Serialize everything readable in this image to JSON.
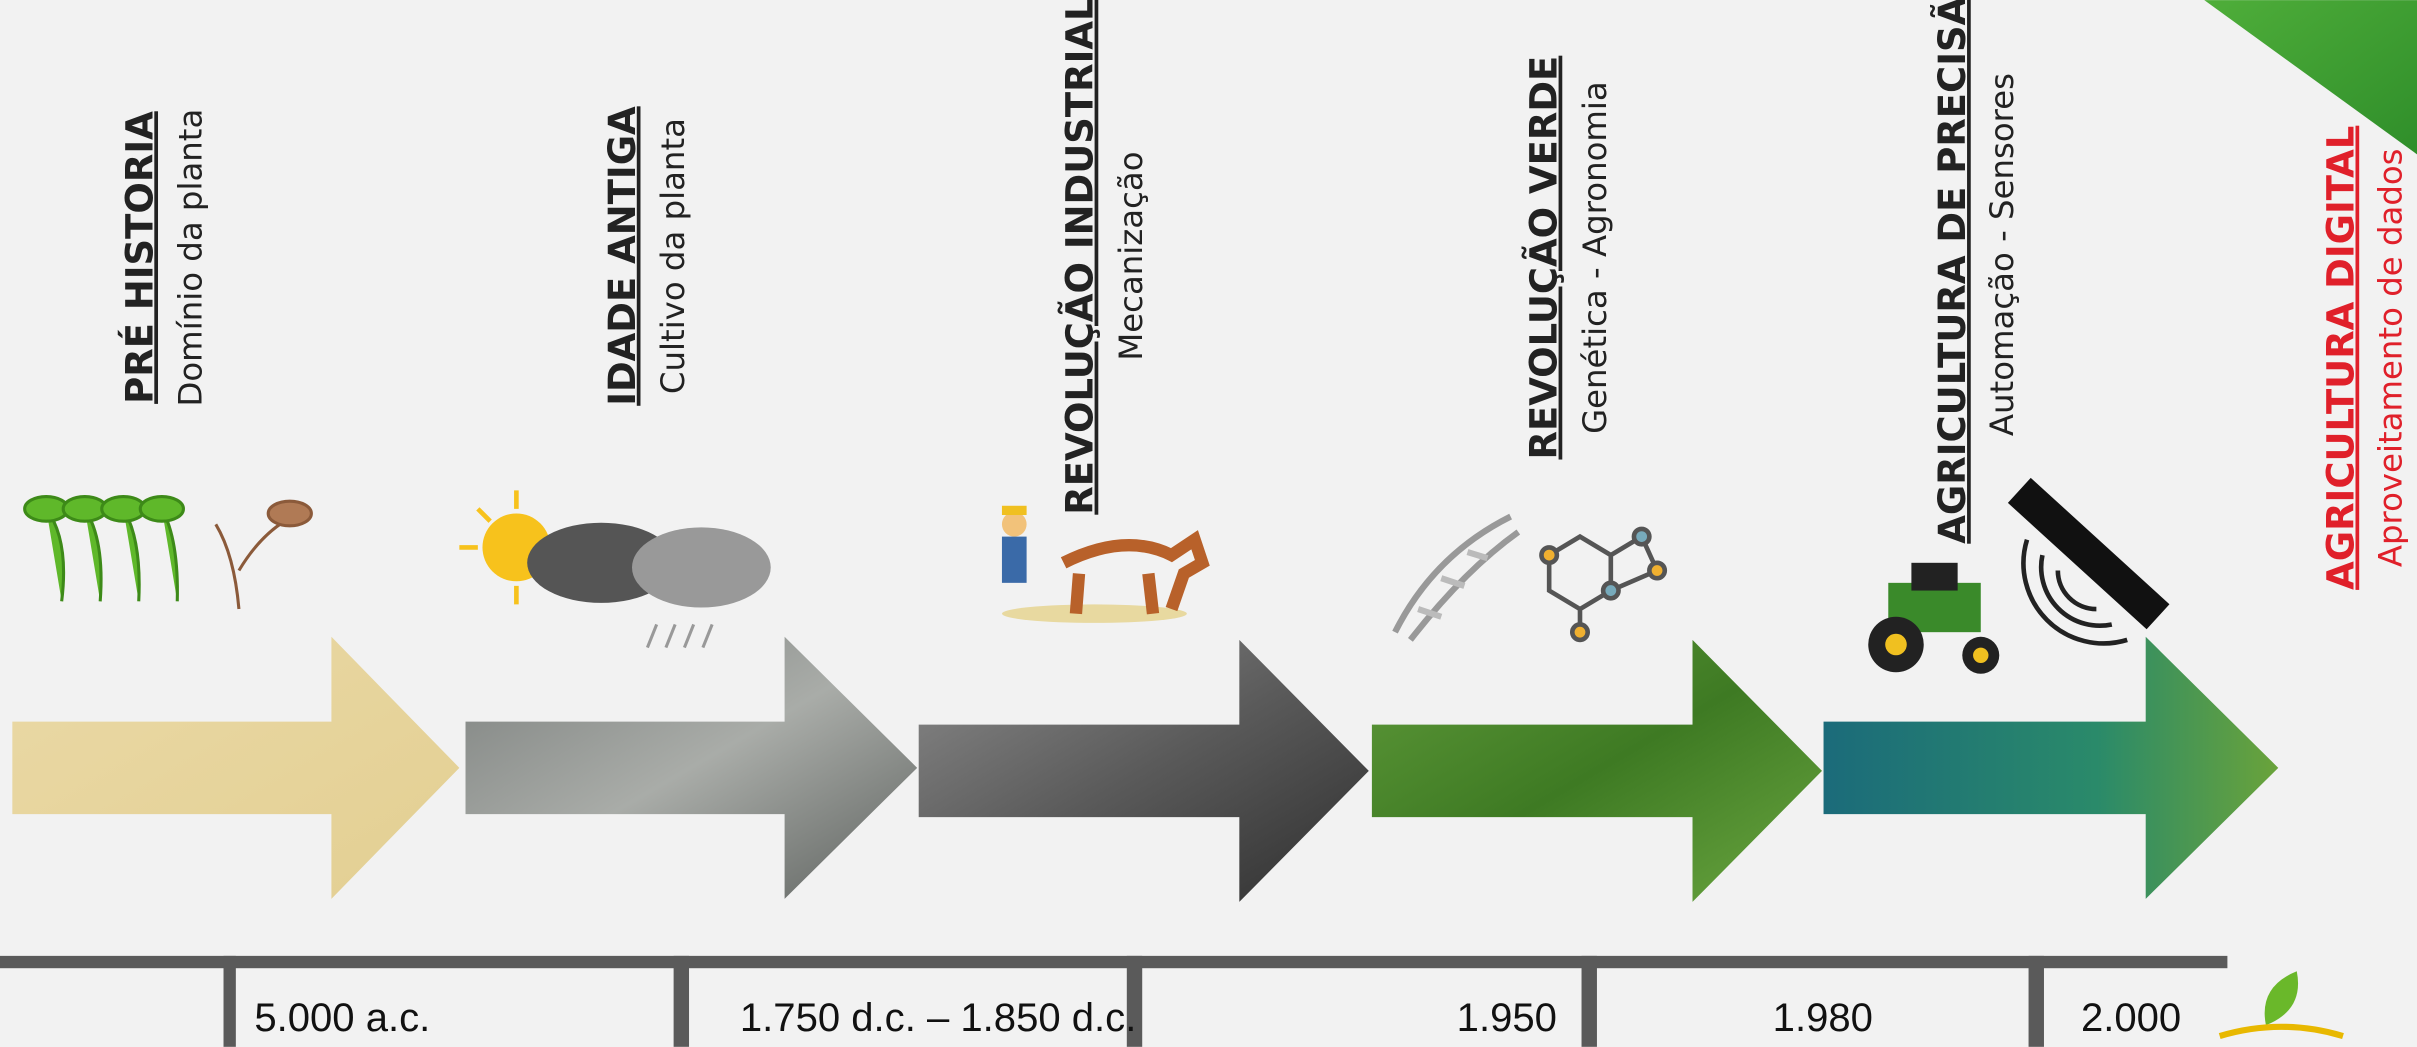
{
  "eras": [
    {
      "title": "PRÉ HISTORIA",
      "subtitle": "Domínio da planta"
    },
    {
      "title": "IDADE ANTIGA",
      "subtitle": "Cultivo da planta"
    },
    {
      "title": "REVOLUÇÃO INDUSTRIAL",
      "subtitle": "Mecanização"
    },
    {
      "title": "REVOLUÇÃO VERDE",
      "subtitle": "Genética - Agronomia"
    },
    {
      "title": "AGRICULTURA DE PRECISÃO",
      "subtitle": "Automação - Sensores"
    },
    {
      "title": "AGRICULTURA DIGITAL",
      "subtitle": "Aproveitamento de dados"
    }
  ],
  "dates": [
    "5.000 a.c.",
    "1.750 d.c. – 1.850 d.c.",
    "1.950",
    "1.980",
    "2.000"
  ]
}
